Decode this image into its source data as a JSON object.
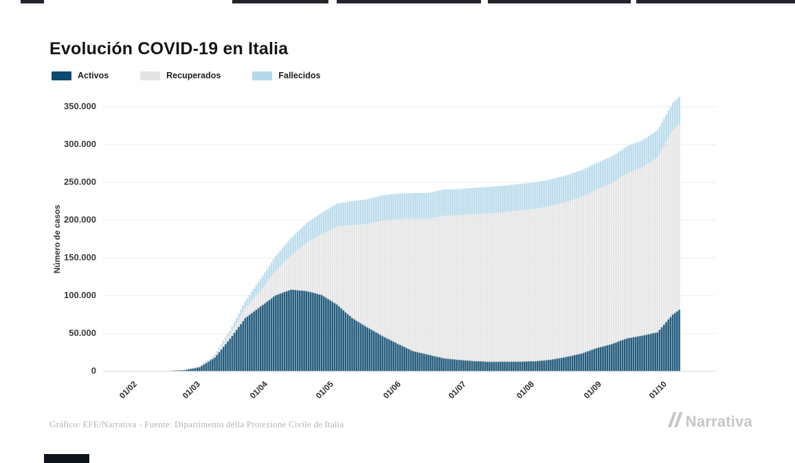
{
  "page": {
    "title": "Evolución COVID-19 en Italia",
    "footer_credit": "Gráfico: EFE/Narrativa - Fuente: Dipartimento della Protezione Civile de Italia",
    "brand": "Narrativa"
  },
  "chart_data": {
    "type": "area",
    "stacked": true,
    "title": "Evolución COVID-19 en Italia",
    "xlabel": "",
    "ylabel": "Número de casos",
    "ylim": [
      0,
      350000
    ],
    "ytick_step": 50000,
    "grid": true,
    "legend_position": "top-left",
    "ytick_labels": [
      "0",
      "50.000",
      "100.000",
      "150.000",
      "200.000",
      "250.000",
      "300.000",
      "350.000"
    ],
    "xtick_labels": [
      "01/02",
      "01/03",
      "01/04",
      "01/05",
      "01/06",
      "01/07",
      "01/08",
      "01/09",
      "01/10"
    ],
    "xtick_days": [
      0,
      29,
      60,
      90,
      121,
      151,
      182,
      213,
      243
    ],
    "sample_dates": [
      "01/02",
      "08/02",
      "15/02",
      "22/02",
      "29/02",
      "07/03",
      "14/03",
      "21/03",
      "28/03",
      "04/04",
      "11/04",
      "18/04",
      "25/04",
      "02/05",
      "09/05",
      "16/05",
      "23/05",
      "30/05",
      "06/06",
      "13/06",
      "20/06",
      "27/06",
      "04/07",
      "11/07",
      "18/07",
      "25/07",
      "01/08",
      "08/08",
      "15/08",
      "22/08",
      "29/08",
      "05/09",
      "12/09",
      "19/09",
      "26/09",
      "03/10",
      "10/10",
      "13/10"
    ],
    "sample_days": [
      0,
      7,
      14,
      21,
      28,
      35,
      42,
      49,
      56,
      63,
      70,
      77,
      84,
      91,
      98,
      105,
      112,
      119,
      126,
      133,
      140,
      147,
      154,
      161,
      168,
      175,
      182,
      189,
      196,
      203,
      210,
      217,
      224,
      231,
      238,
      245,
      252,
      255
    ],
    "series": [
      {
        "name": "Activos",
        "color": "#0c4a6e",
        "values": [
          2,
          3,
          3,
          76,
          1049,
          5061,
          17750,
          42681,
          70065,
          85388,
          100269,
          107771,
          105847,
          100704,
          87961,
          70187,
          57752,
          46175,
          35877,
          26270,
          21543,
          16836,
          14709,
          13157,
          12248,
          12404,
          12422,
          12924,
          14867,
          18438,
          23035,
          30099,
          35708,
          43161,
          46780,
          51263,
          74829,
          80925
        ]
      },
      {
        "name": "Recuperados",
        "color": "#e4e4e4",
        "values": [
          0,
          0,
          0,
          1,
          50,
          589,
          2335,
          6072,
          12384,
          20996,
          32534,
          44927,
          63120,
          79914,
          103031,
          122810,
          136720,
          152844,
          165078,
          174865,
          179455,
          188584,
          191083,
          194273,
          196246,
          197842,
          199974,
          201642,
          203326,
          204960,
          206902,
          209610,
          212432,
          218351,
          222716,
          231217,
          243967,
          245540
        ]
      },
      {
        "name": "Fallecidos",
        "color": "#b5d9ea",
        "values": [
          0,
          0,
          0,
          2,
          29,
          233,
          1441,
          4825,
          10023,
          15362,
          19468,
          23227,
          26384,
          28710,
          30395,
          31763,
          32735,
          33340,
          33846,
          34301,
          34610,
          34716,
          34854,
          34945,
          35042,
          35102,
          35146,
          35203,
          35396,
          35430,
          35477,
          35541,
          35603,
          35707,
          35818,
          35941,
          36166,
          36372
        ]
      }
    ]
  }
}
